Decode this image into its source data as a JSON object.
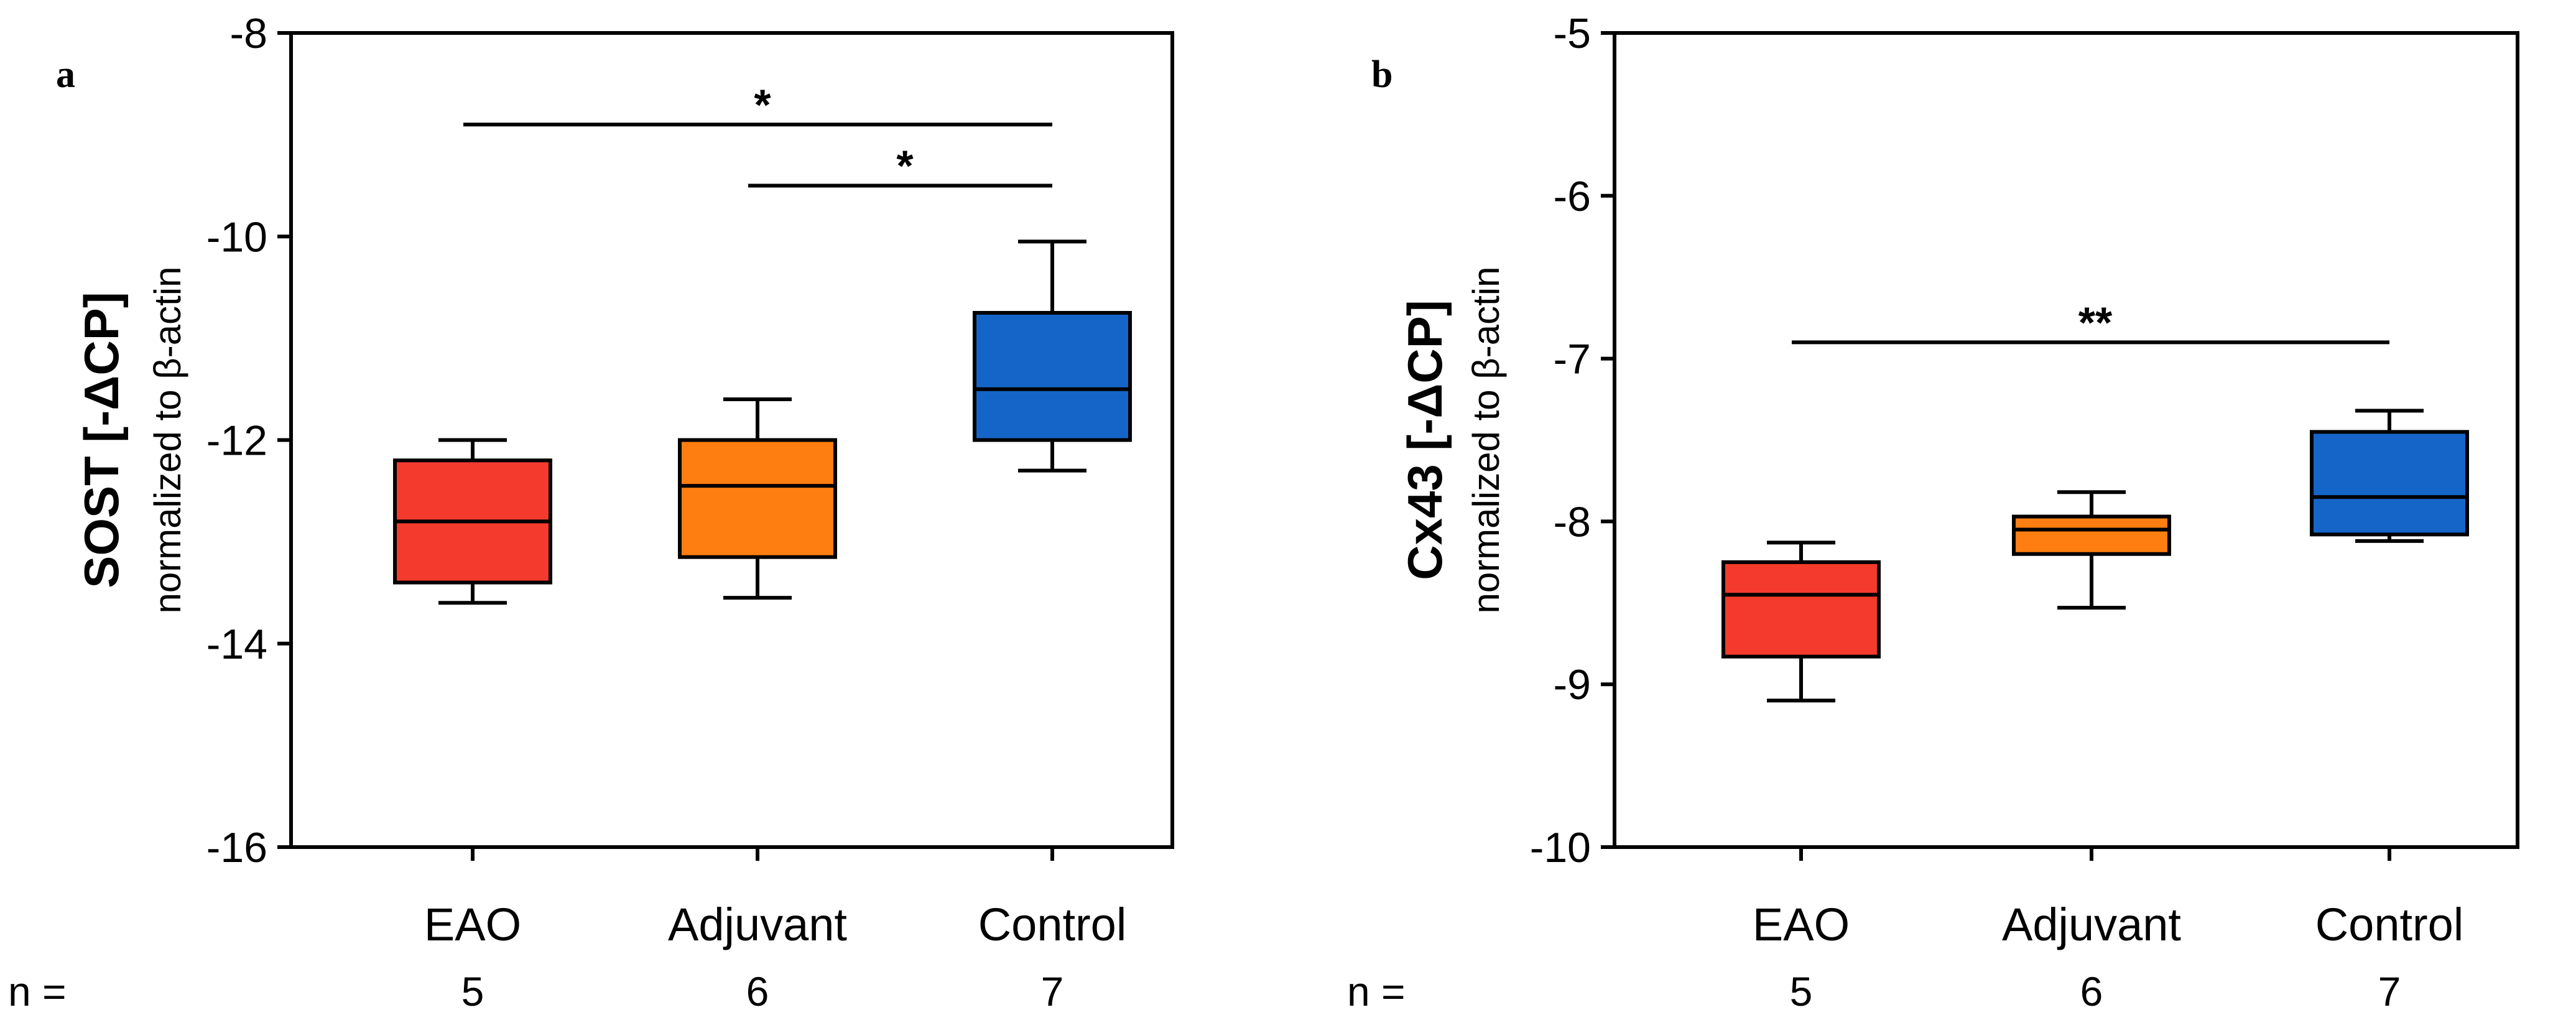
{
  "chart_data": [
    {
      "panel_label": "a",
      "type": "box",
      "ylabel_main": "SOST [-ΔCP]",
      "ylabel_sub": "normalized to β-actin",
      "ylim": [
        -16,
        -8
      ],
      "yticks": [
        -8,
        -10,
        -12,
        -14,
        -16
      ],
      "ytick_labels": [
        "-8",
        "-10",
        "-12",
        "-14",
        "-16"
      ],
      "categories": [
        "EAO",
        "Adjuvant",
        "Control"
      ],
      "n_label": "n =",
      "n_values": [
        "5",
        "6",
        "7"
      ],
      "colors": [
        "#f43a2c",
        "#ff7e11",
        "#1565c8"
      ],
      "boxes": [
        {
          "whisker_low": -13.6,
          "q1": -13.4,
          "median": -12.8,
          "q3": -12.2,
          "whisker_high": -12.0
        },
        {
          "whisker_low": -13.55,
          "q1": -13.15,
          "median": -12.45,
          "q3": -12.0,
          "whisker_high": -11.6
        },
        {
          "whisker_low": -12.3,
          "q1": -12.0,
          "median": -11.5,
          "q3": -10.75,
          "whisker_high": -10.05
        }
      ],
      "significance": [
        {
          "from": 0,
          "to": 2,
          "y": -8.9,
          "label": "*"
        },
        {
          "from": 1,
          "to": 2,
          "y": -9.5,
          "label": "*"
        }
      ]
    },
    {
      "panel_label": "b",
      "type": "box",
      "ylabel_main": "Cx43 [-ΔCP]",
      "ylabel_sub": "normalized to β-actin",
      "ylim": [
        -10,
        -5
      ],
      "yticks": [
        -5,
        -6,
        -7,
        -8,
        -9,
        -10
      ],
      "ytick_labels": [
        "-5",
        "-6",
        "-7",
        "-8",
        "-9",
        "-10"
      ],
      "categories": [
        "EAO",
        "Adjuvant",
        "Control"
      ],
      "n_label": "n =",
      "n_values": [
        "5",
        "6",
        "7"
      ],
      "colors": [
        "#f43a2c",
        "#ff7e11",
        "#1565c8"
      ],
      "boxes": [
        {
          "whisker_low": -9.1,
          "q1": -8.83,
          "median": -8.45,
          "q3": -8.25,
          "whisker_high": -8.13
        },
        {
          "whisker_low": -8.53,
          "q1": -8.2,
          "median": -8.05,
          "q3": -7.97,
          "whisker_high": -7.82
        },
        {
          "whisker_low": -8.12,
          "q1": -8.08,
          "median": -7.85,
          "q3": -7.45,
          "whisker_high": -7.32
        }
      ],
      "significance": [
        {
          "from": 0,
          "to": 2,
          "y": -6.9,
          "label": "**"
        }
      ]
    }
  ]
}
